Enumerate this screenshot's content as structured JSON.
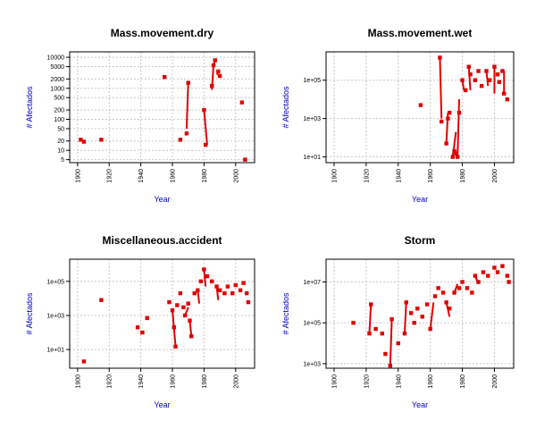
{
  "colors": {
    "series": "#e00000",
    "axis_label": "#0000cc",
    "grid": "#c8c8c8"
  },
  "chart_data": [
    {
      "type": "line",
      "title": "Mass.movement.dry",
      "xlabel": "Year",
      "ylabel": "# Afectados",
      "xlim": [
        1895,
        2012
      ],
      "ylim": [
        4,
        15000
      ],
      "yscale": "log",
      "x_ticks": [
        "1900",
        "1920",
        "1940",
        "1960",
        "1980",
        "2000"
      ],
      "y_ticks": [
        "5",
        "10",
        "20",
        "50",
        "100",
        "200",
        "500",
        "1000",
        "2000",
        "5000",
        "10000"
      ],
      "grid": true,
      "points": [
        [
          1902,
          22
        ],
        [
          1904,
          19
        ],
        [
          1915,
          22
        ],
        [
          1955,
          2300
        ],
        [
          1965,
          22
        ],
        [
          1969,
          35
        ],
        [
          1970,
          1500
        ],
        [
          1980,
          200
        ],
        [
          1981,
          15
        ],
        [
          1985,
          1200
        ],
        [
          1986,
          5500
        ],
        [
          1987,
          8000
        ],
        [
          1989,
          3500
        ],
        [
          1990,
          2500
        ],
        [
          2004,
          350
        ],
        [
          2006,
          5
        ]
      ],
      "segments": [
        [
          [
            1969,
            50
          ],
          [
            1970,
            1500
          ]
        ],
        [
          [
            1980,
            200
          ],
          [
            1982,
            15
          ]
        ],
        [
          [
            1985,
            900
          ],
          [
            1986,
            5500
          ]
        ],
        [
          [
            1986,
            5500
          ],
          [
            1987,
            8000
          ]
        ],
        [
          [
            1988,
            3000
          ],
          [
            1990,
            2500
          ]
        ]
      ]
    },
    {
      "type": "line",
      "title": "Mass.movement.wet",
      "xlabel": "Year",
      "ylabel": "# Afectados",
      "xlim": [
        1895,
        2012
      ],
      "ylim": [
        5,
        3000000
      ],
      "yscale": "log",
      "x_ticks": [
        "1900",
        "1920",
        "1940",
        "1960",
        "1980",
        "2000"
      ],
      "y_ticks": [
        "1e+01",
        "1e+03",
        "1e+05"
      ],
      "grid": true,
      "points": [
        [
          1954,
          5000
        ],
        [
          1966,
          1500000
        ],
        [
          1967,
          700
        ],
        [
          1970,
          50
        ],
        [
          1971,
          1000
        ],
        [
          1972,
          2000
        ],
        [
          1974,
          10
        ],
        [
          1975,
          20
        ],
        [
          1976,
          15
        ],
        [
          1977,
          10
        ],
        [
          1978,
          2000
        ],
        [
          1980,
          100000
        ],
        [
          1982,
          30000
        ],
        [
          1984,
          500000
        ],
        [
          1985,
          200000
        ],
        [
          1988,
          100000
        ],
        [
          1990,
          300000
        ],
        [
          1992,
          50000
        ],
        [
          1995,
          300000
        ],
        [
          1997,
          100000
        ],
        [
          2000,
          500000
        ],
        [
          2002,
          200000
        ],
        [
          2003,
          80000
        ],
        [
          2005,
          300000
        ],
        [
          2006,
          20000
        ],
        [
          2008,
          10000
        ]
      ],
      "segments": [
        [
          [
            1966,
            1500000
          ],
          [
            1967,
            1000
          ]
        ],
        [
          [
            1970,
            50
          ],
          [
            1971,
            2000
          ]
        ],
        [
          [
            1974,
            10
          ],
          [
            1976,
            200
          ]
        ],
        [
          [
            1977,
            10
          ],
          [
            1978,
            10000
          ]
        ],
        [
          [
            1980,
            100000
          ],
          [
            1981,
            30000
          ]
        ],
        [
          [
            1984,
            500000
          ],
          [
            1985,
            30000
          ]
        ],
        [
          [
            1995,
            300000
          ],
          [
            1996,
            50000
          ]
        ],
        [
          [
            2000,
            500000
          ],
          [
            2000,
            20000
          ]
        ],
        [
          [
            2006,
            300000
          ],
          [
            2006,
            20000
          ]
        ]
      ]
    },
    {
      "type": "line",
      "title": "Miscellaneous.accident",
      "xlabel": "Year",
      "ylabel": "# Afectados",
      "xlim": [
        1895,
        2012
      ],
      "ylim": [
        0.8,
        2000000
      ],
      "yscale": "log",
      "x_ticks": [
        "1900",
        "1920",
        "1940",
        "1960",
        "1980",
        "2000"
      ],
      "y_ticks": [
        "1e+01",
        "1e+03",
        "1e+05"
      ],
      "grid": true,
      "points": [
        [
          1904,
          2
        ],
        [
          1915,
          8000
        ],
        [
          1938,
          200
        ],
        [
          1941,
          100
        ],
        [
          1944,
          700
        ],
        [
          1958,
          6000
        ],
        [
          1960,
          2000
        ],
        [
          1961,
          200
        ],
        [
          1962,
          15
        ],
        [
          1963,
          4000
        ],
        [
          1965,
          20000
        ],
        [
          1967,
          3000
        ],
        [
          1968,
          1000
        ],
        [
          1970,
          5000
        ],
        [
          1971,
          500
        ],
        [
          1972,
          60
        ],
        [
          1974,
          20000
        ],
        [
          1976,
          30000
        ],
        [
          1978,
          100000
        ],
        [
          1980,
          500000
        ],
        [
          1982,
          200000
        ],
        [
          1985,
          100000
        ],
        [
          1988,
          50000
        ],
        [
          1990,
          30000
        ],
        [
          1993,
          20000
        ],
        [
          1995,
          50000
        ],
        [
          1998,
          20000
        ],
        [
          2000,
          60000
        ],
        [
          2003,
          30000
        ],
        [
          2005,
          80000
        ],
        [
          2007,
          20000
        ],
        [
          2008,
          6000
        ]
      ],
      "segments": [
        [
          [
            1960,
            2000
          ],
          [
            1962,
            15
          ]
        ],
        [
          [
            1968,
            1000
          ],
          [
            1970,
            3000
          ]
        ],
        [
          [
            1971,
            500
          ],
          [
            1972,
            60
          ]
        ],
        [
          [
            1976,
            30000
          ],
          [
            1977,
            5000
          ]
        ],
        [
          [
            1980,
            500000
          ],
          [
            1981,
            50000
          ]
        ],
        [
          [
            1988,
            50000
          ],
          [
            1989,
            8000
          ]
        ]
      ]
    },
    {
      "type": "line",
      "title": "Storm",
      "xlabel": "Year",
      "ylabel": "# Afectados",
      "xlim": [
        1895,
        2012
      ],
      "ylim": [
        600,
        130000000
      ],
      "yscale": "log",
      "x_ticks": [
        "1900",
        "1920",
        "1940",
        "1960",
        "1980",
        "2000"
      ],
      "y_ticks": [
        "1e+03",
        "1e+05",
        "1e+07"
      ],
      "grid": true,
      "points": [
        [
          1912,
          100000
        ],
        [
          1922,
          30000
        ],
        [
          1923,
          800000
        ],
        [
          1926,
          50000
        ],
        [
          1930,
          30000
        ],
        [
          1932,
          3000
        ],
        [
          1935,
          800
        ],
        [
          1936,
          150000
        ],
        [
          1940,
          10000
        ],
        [
          1944,
          30000
        ],
        [
          1945,
          1000000
        ],
        [
          1948,
          300000
        ],
        [
          1950,
          100000
        ],
        [
          1952,
          500000
        ],
        [
          1955,
          200000
        ],
        [
          1958,
          800000
        ],
        [
          1960,
          50000
        ],
        [
          1963,
          2000000
        ],
        [
          1965,
          5000000
        ],
        [
          1968,
          3000000
        ],
        [
          1970,
          1000000
        ],
        [
          1972,
          500000
        ],
        [
          1975,
          3000000
        ],
        [
          1978,
          5000000
        ],
        [
          1980,
          10000000
        ],
        [
          1983,
          5000000
        ],
        [
          1986,
          3000000
        ],
        [
          1988,
          20000000
        ],
        [
          1990,
          10000000
        ],
        [
          1993,
          30000000
        ],
        [
          1996,
          20000000
        ],
        [
          2000,
          50000000
        ],
        [
          2002,
          30000000
        ],
        [
          2005,
          60000000
        ],
        [
          2008,
          20000000
        ],
        [
          2009,
          10000000
        ]
      ],
      "segments": [
        [
          [
            1922,
            30000
          ],
          [
            1923,
            800000
          ]
        ],
        [
          [
            1935,
            800
          ],
          [
            1936,
            150000
          ]
        ],
        [
          [
            1944,
            30000
          ],
          [
            1945,
            1000000
          ]
        ],
        [
          [
            1960,
            50000
          ],
          [
            1962,
            1000000
          ]
        ],
        [
          [
            1970,
            1000000
          ],
          [
            1972,
            200000
          ]
        ],
        [
          [
            1975,
            3000000
          ],
          [
            1977,
            8000000
          ]
        ],
        [
          [
            1988,
            20000000
          ],
          [
            1990,
            8000000
          ]
        ]
      ]
    }
  ]
}
